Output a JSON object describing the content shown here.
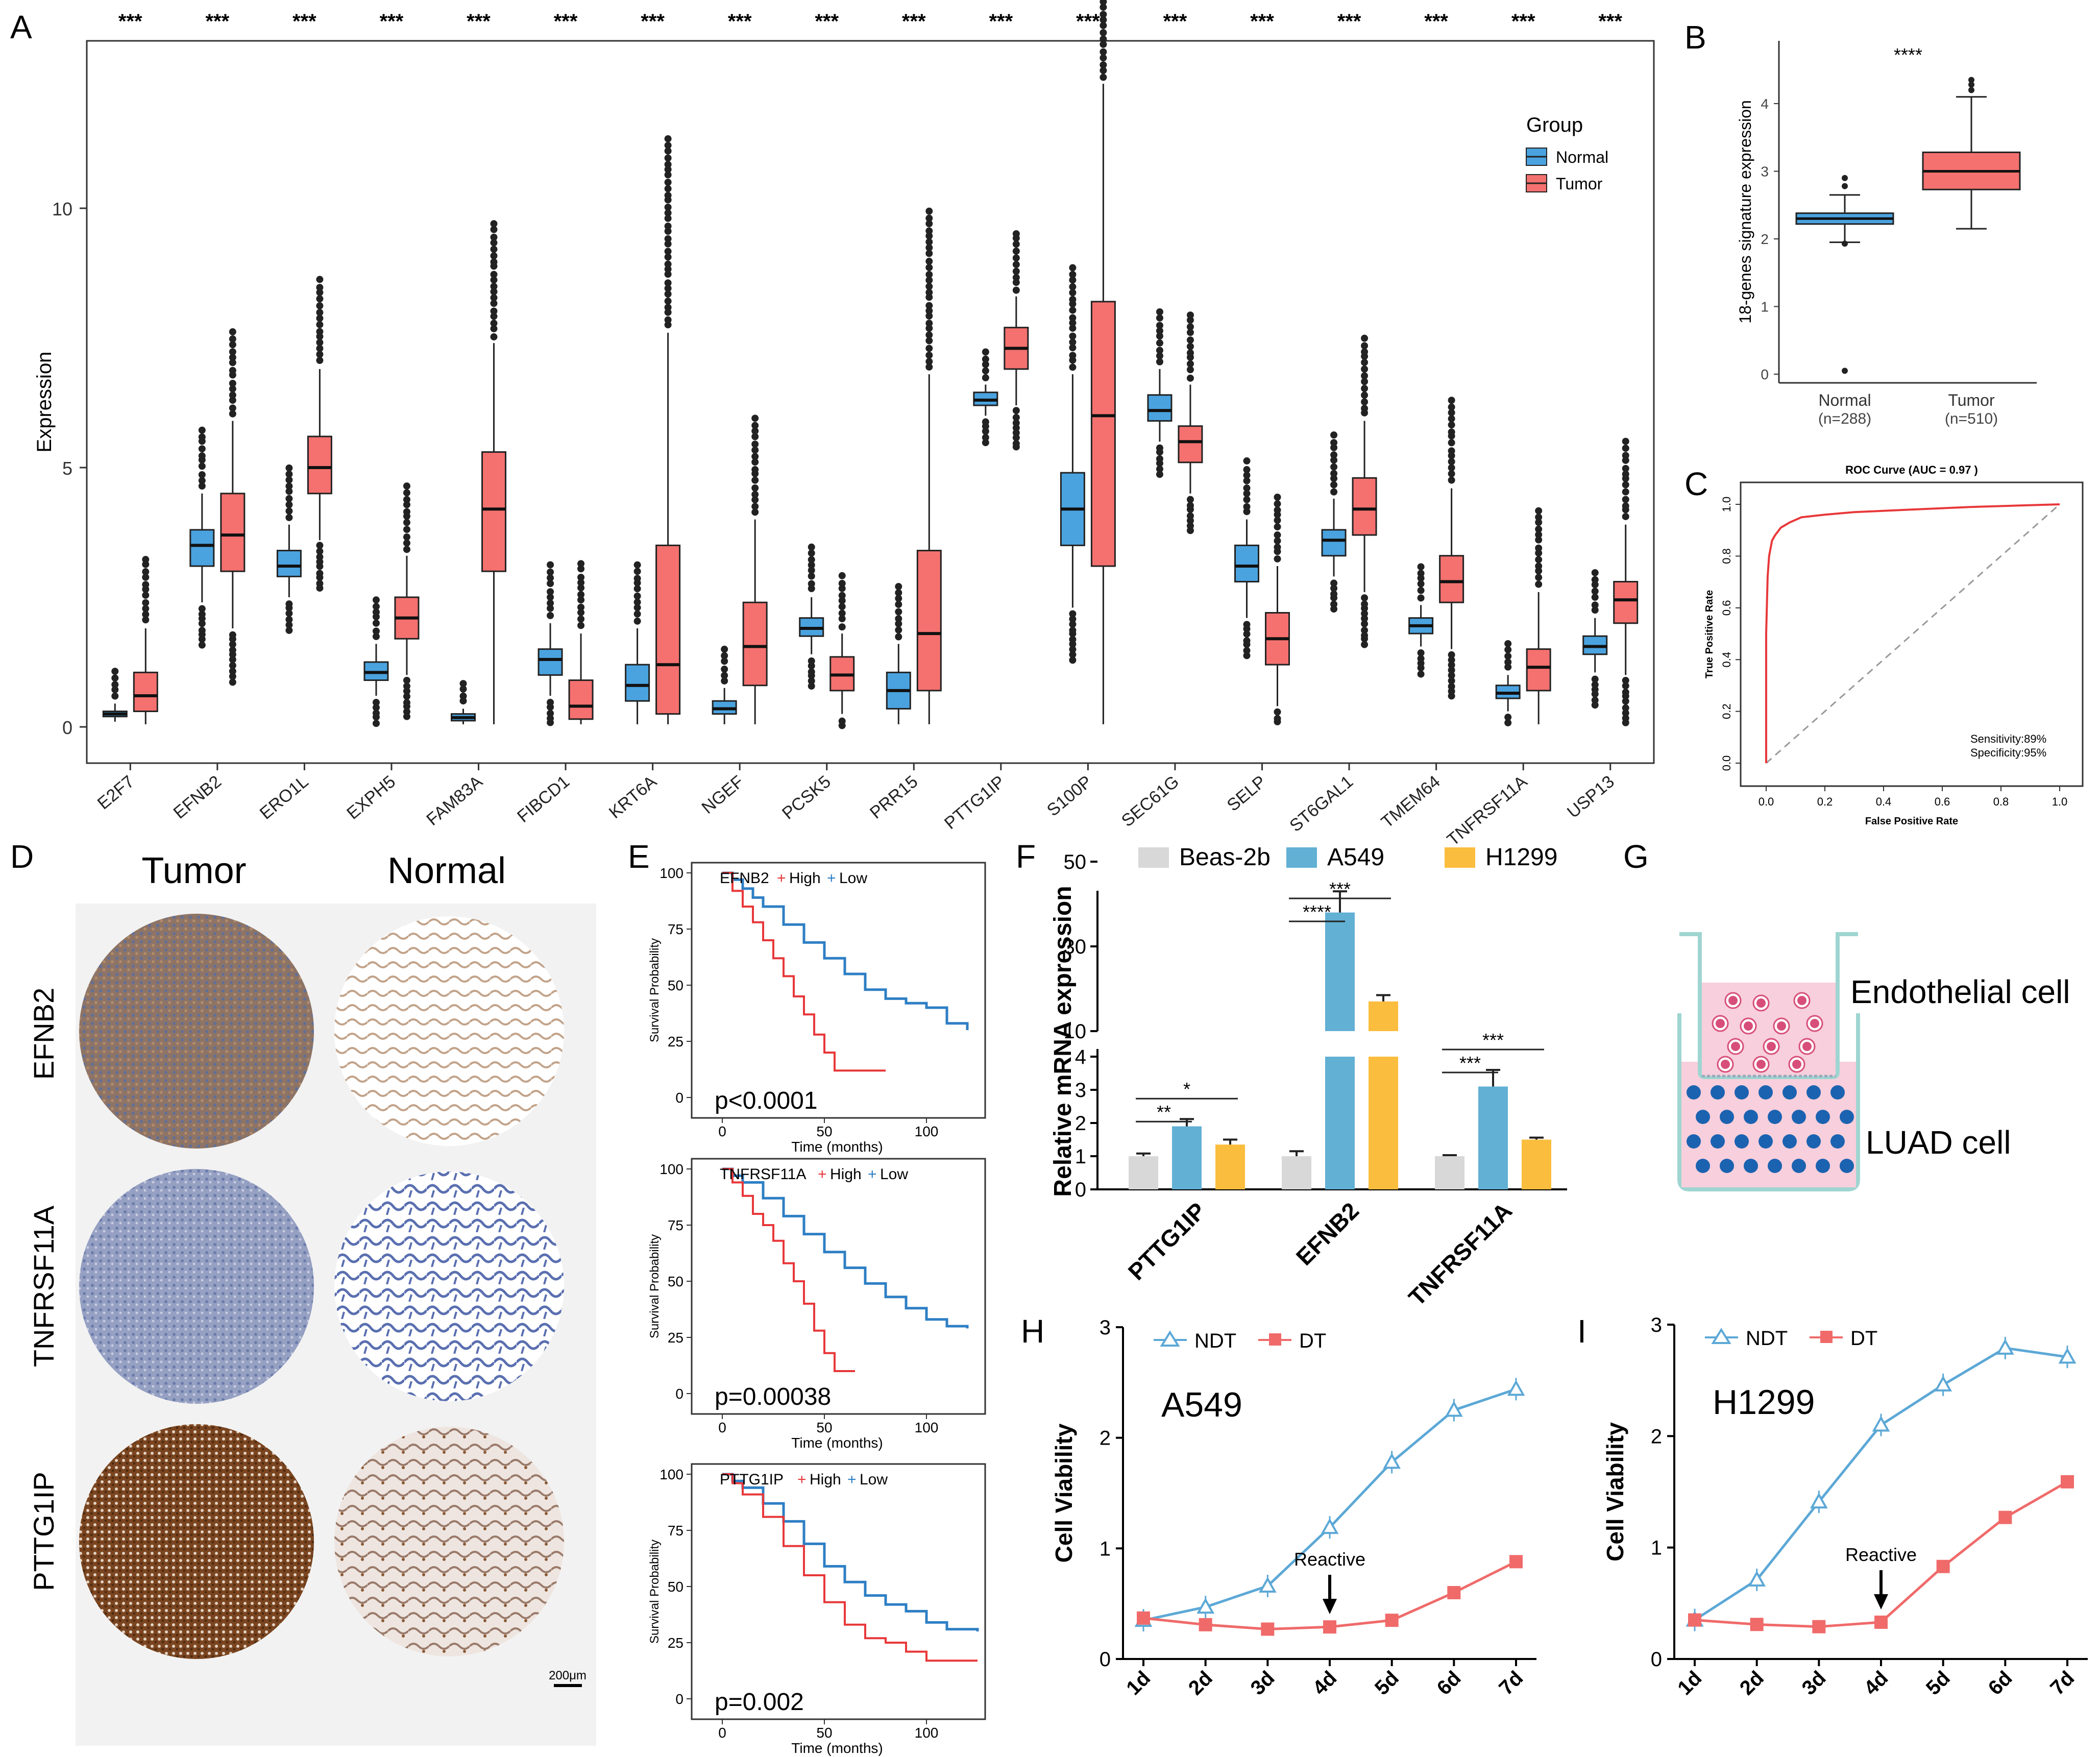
{
  "colors": {
    "normal": "#4aa3df",
    "tumor": "#f4716f",
    "beas": "#d8d8d8",
    "a549": "#62b0d4",
    "h1299": "#fbbd3d",
    "ndt": "#5ca8d6",
    "dt": "#f06a6a",
    "km_high": "#e8383a",
    "km_low": "#2e7fc4",
    "roc": "#e8383a",
    "tissue_brown": "#8a5a35",
    "tissue_blue": "#7f8fb8",
    "cell_pink": "#d74e7a",
    "cell_blue": "#1b63b0"
  },
  "panels": {
    "A": "A",
    "B": "B",
    "C": "C",
    "D": "D",
    "E": "E",
    "F": "F",
    "G": "G",
    "H": "H",
    "I": "I"
  },
  "chart_data": [
    {
      "id": "A",
      "type": "box",
      "ylabel": "Expression",
      "ylim": [
        0,
        13.2
      ],
      "yticks": [
        0,
        5,
        10
      ],
      "legend": {
        "title": "Group",
        "items": [
          "Normal",
          "Tumor"
        ],
        "position": "top-right"
      },
      "significance": "***",
      "categories": [
        "E2F7",
        "EFNB2",
        "ERO1L",
        "EXPH5",
        "FAM83A",
        "FIBCD1",
        "KRT6A",
        "NGEF",
        "PCSK5",
        "PRR15",
        "PTTG1IP",
        "S100P",
        "SEC61G",
        "SELP",
        "ST6GAL1",
        "TMEM64",
        "TNFRSF11A",
        "USP13"
      ],
      "series": [
        {
          "name": "Normal",
          "boxes": [
            [
              0.25,
              0.2,
              0.3,
              0.1,
              0.45
            ],
            [
              3.5,
              3.1,
              3.8,
              2.4,
              4.5
            ],
            [
              3.1,
              2.9,
              3.4,
              2.5,
              3.9
            ],
            [
              1.05,
              0.9,
              1.25,
              0.6,
              1.6
            ],
            [
              0.18,
              0.12,
              0.25,
              0.05,
              0.35
            ],
            [
              1.3,
              1.0,
              1.5,
              0.6,
              2.0
            ],
            [
              0.8,
              0.5,
              1.2,
              0.05,
              1.9
            ],
            [
              0.35,
              0.25,
              0.5,
              0.05,
              0.75
            ],
            [
              1.9,
              1.75,
              2.1,
              1.4,
              2.5
            ],
            [
              0.7,
              0.35,
              1.05,
              0.05,
              1.6
            ],
            [
              6.3,
              6.2,
              6.45,
              6.0,
              6.6
            ],
            [
              4.2,
              3.5,
              4.9,
              2.3,
              6.8
            ],
            [
              6.1,
              5.9,
              6.4,
              5.5,
              6.9
            ],
            [
              3.1,
              2.8,
              3.5,
              2.1,
              4.0
            ],
            [
              3.6,
              3.3,
              3.8,
              2.9,
              4.4
            ],
            [
              1.95,
              1.8,
              2.1,
              1.55,
              2.35
            ],
            [
              0.65,
              0.55,
              0.8,
              0.3,
              1.0
            ],
            [
              1.55,
              1.4,
              1.75,
              1.05,
              2.1
            ]
          ]
        },
        {
          "name": "Tumor",
          "boxes": [
            [
              0.6,
              0.3,
              1.05,
              0.05,
              1.9
            ],
            [
              3.7,
              3.0,
              4.5,
              1.9,
              5.9
            ],
            [
              5.0,
              4.5,
              5.6,
              3.6,
              6.9
            ],
            [
              2.1,
              1.7,
              2.5,
              1.0,
              3.3
            ],
            [
              4.2,
              3.0,
              5.3,
              0.05,
              7.4
            ],
            [
              0.4,
              0.15,
              0.9,
              0.05,
              1.8
            ],
            [
              1.2,
              0.25,
              3.5,
              0.05,
              7.6
            ],
            [
              1.55,
              0.8,
              2.4,
              0.05,
              4.0
            ],
            [
              1.0,
              0.7,
              1.35,
              0.25,
              1.8
            ],
            [
              1.8,
              0.7,
              3.4,
              0.05,
              6.8
            ],
            [
              7.3,
              6.9,
              7.7,
              6.2,
              8.3
            ],
            [
              6.0,
              3.1,
              8.2,
              0.05,
              12.4
            ],
            [
              5.5,
              5.1,
              5.8,
              4.5,
              6.6
            ],
            [
              1.7,
              1.2,
              2.2,
              0.4,
              3.1
            ],
            [
              4.2,
              3.7,
              4.8,
              2.6,
              5.9
            ],
            [
              2.8,
              2.4,
              3.3,
              1.5,
              4.6
            ],
            [
              1.15,
              0.7,
              1.5,
              0.05,
              2.6
            ],
            [
              2.45,
              2.0,
              2.8,
              1.0,
              3.9
            ]
          ]
        }
      ]
    },
    {
      "id": "B",
      "type": "box",
      "title": "****",
      "ylabel": "18-genes signature expression",
      "ylim": [
        0,
        4.5
      ],
      "yticks": [
        0,
        1,
        2,
        3,
        4
      ],
      "categories": [
        "Normal",
        "Tumor"
      ],
      "category_counts": [
        "(n=288)",
        "(n=510)"
      ],
      "boxes": [
        [
          2.3,
          2.22,
          2.38,
          1.95,
          2.65
        ],
        [
          3.0,
          2.73,
          3.28,
          2.15,
          4.1
        ]
      ],
      "outliers": [
        [
          0.05,
          1.93,
          2.78,
          2.9
        ],
        [
          4.2,
          4.28,
          4.35
        ]
      ]
    },
    {
      "id": "C",
      "type": "line",
      "title": "ROC Curve (AUC = 0.97 )",
      "xlabel": "False Positive Rate",
      "ylabel": "True Positive Rate",
      "xlim": [
        0,
        1
      ],
      "ylim": [
        0,
        1
      ],
      "ticks": [
        "0.0",
        "0.2",
        "0.4",
        "0.6",
        "0.8",
        "1.0"
      ],
      "annotations": [
        "Sensitivity:89%",
        "Specificity:95%"
      ],
      "fpr": [
        0,
        0,
        0.005,
        0.01,
        0.015,
        0.02,
        0.03,
        0.05,
        0.08,
        0.12,
        0.2,
        0.3,
        0.5,
        0.7,
        0.85,
        1.0
      ],
      "tpr": [
        0,
        0.5,
        0.72,
        0.8,
        0.83,
        0.86,
        0.88,
        0.91,
        0.93,
        0.95,
        0.96,
        0.97,
        0.98,
        0.99,
        0.995,
        1.0
      ]
    },
    {
      "id": "E",
      "type": "line",
      "ylabel": "Survival Probability",
      "xlabel": "Time (months)",
      "xlim": [
        0,
        125
      ],
      "ylim": [
        0,
        100
      ],
      "xticks": [
        0,
        50,
        100
      ],
      "yticks": [
        0,
        25,
        50,
        75,
        100
      ],
      "plots": [
        {
          "gene": "EFNB2",
          "pvalue": "p<0.0001",
          "high": {
            "t": [
              0,
              5,
              10,
              15,
              20,
              25,
              30,
              35,
              40,
              45,
              50,
              55,
              60,
              70,
              80
            ],
            "s": [
              100,
              92,
              85,
              78,
              70,
              62,
              54,
              45,
              37,
              28,
              20,
              12,
              12,
              12,
              12
            ]
          },
          "low": {
            "t": [
              0,
              5,
              10,
              15,
              20,
              30,
              40,
              50,
              60,
              70,
              80,
              90,
              100,
              110,
              120
            ],
            "s": [
              100,
              97,
              93,
              89,
              85,
              77,
              69,
              62,
              55,
              48,
              44,
              42,
              40,
              33,
              30
            ]
          }
        },
        {
          "gene": "TNFRSF11A",
          "pvalue": "p=0.00038",
          "high": {
            "t": [
              0,
              5,
              10,
              15,
              20,
              25,
              30,
              35,
              40,
              45,
              50,
              55,
              60,
              65
            ],
            "s": [
              100,
              94,
              88,
              80,
              75,
              68,
              58,
              50,
              40,
              28,
              18,
              10,
              10,
              10
            ]
          },
          "low": {
            "t": [
              0,
              5,
              10,
              20,
              30,
              40,
              50,
              60,
              70,
              80,
              90,
              100,
              110,
              120
            ],
            "s": [
              100,
              97,
              94,
              87,
              79,
              71,
              63,
              56,
              49,
              43,
              38,
              33,
              30,
              29
            ]
          }
        },
        {
          "gene": "PTTG1IP",
          "pvalue": "p=0.002",
          "high": {
            "t": [
              0,
              5,
              10,
              20,
              30,
              40,
              50,
              60,
              70,
              80,
              90,
              100,
              110,
              125
            ],
            "s": [
              100,
              96,
              91,
              81,
              68,
              55,
              43,
              33,
              27,
              25,
              21,
              17,
              17,
              17
            ]
          },
          "low": {
            "t": [
              0,
              5,
              10,
              20,
              30,
              40,
              50,
              60,
              70,
              80,
              90,
              100,
              110,
              125
            ],
            "s": [
              100,
              97,
              94,
              87,
              79,
              69,
              59,
              52,
              46,
              42,
              39,
              34,
              31,
              30
            ]
          }
        }
      ],
      "legend": [
        "High",
        "Low"
      ]
    },
    {
      "id": "F",
      "type": "bar",
      "ylabel": "Relative  mRNA expression",
      "legend": [
        "Beas-2b",
        "A549",
        "H1299"
      ],
      "categories": [
        "PTTG1IP",
        "EFNB2",
        "TNFRSF11A"
      ],
      "series": [
        {
          "name": "Beas-2b",
          "values": [
            1.0,
            1.0,
            1.0
          ],
          "errors": [
            0.08,
            0.15,
            0.03
          ]
        },
        {
          "name": "A549",
          "values": [
            1.9,
            38,
            3.1
          ],
          "errors": [
            0.22,
            5,
            0.5
          ]
        },
        {
          "name": "H1299",
          "values": [
            1.35,
            17,
            1.5
          ],
          "errors": [
            0.15,
            1.5,
            0.06
          ]
        }
      ],
      "yticks_low": [
        "0",
        "1",
        "2",
        "3",
        "4"
      ],
      "yticks_high": [
        "10",
        "30",
        "50"
      ],
      "significance": [
        [
          "*",
          "**"
        ],
        [
          "***",
          "****"
        ],
        [
          "***",
          "***"
        ]
      ]
    },
    {
      "id": "H",
      "type": "line",
      "inset_label": "A549",
      "ylabel": "Cell Viability",
      "ylim": [
        0,
        3
      ],
      "yticks": [
        0,
        1,
        2,
        3
      ],
      "categories": [
        "1d",
        "2d",
        "3d",
        "4d",
        "5d",
        "6d",
        "7d"
      ],
      "annotation": "Reactive",
      "series": [
        {
          "name": "NDT",
          "values": [
            0.35,
            0.47,
            0.66,
            1.19,
            1.78,
            2.25,
            2.44
          ]
        },
        {
          "name": "DT",
          "values": [
            0.37,
            0.31,
            0.27,
            0.29,
            0.35,
            0.6,
            0.88
          ]
        }
      ]
    },
    {
      "id": "I",
      "type": "line",
      "inset_label": "H1299",
      "ylabel": "Cell Viability",
      "ylim": [
        0,
        3
      ],
      "yticks": [
        0,
        1,
        2,
        3
      ],
      "categories": [
        "1d",
        "2d",
        "3d",
        "4d",
        "5d",
        "6d",
        "7d"
      ],
      "annotation": "Reactive",
      "series": [
        {
          "name": "NDT",
          "values": [
            0.35,
            0.71,
            1.41,
            2.1,
            2.46,
            2.79,
            2.71
          ]
        },
        {
          "name": "DT",
          "values": [
            0.35,
            0.31,
            0.29,
            0.33,
            0.83,
            1.27,
            1.59
          ]
        }
      ]
    }
  ],
  "ihc": {
    "col_tumor": "Tumor",
    "col_normal": "Normal",
    "rows": [
      "EFNB2",
      "TNFRSF11A",
      "PTTG1IP"
    ],
    "scale": "200μm"
  },
  "schematic": {
    "top": "Endothelial cell",
    "bottom": "LUAD cell"
  }
}
